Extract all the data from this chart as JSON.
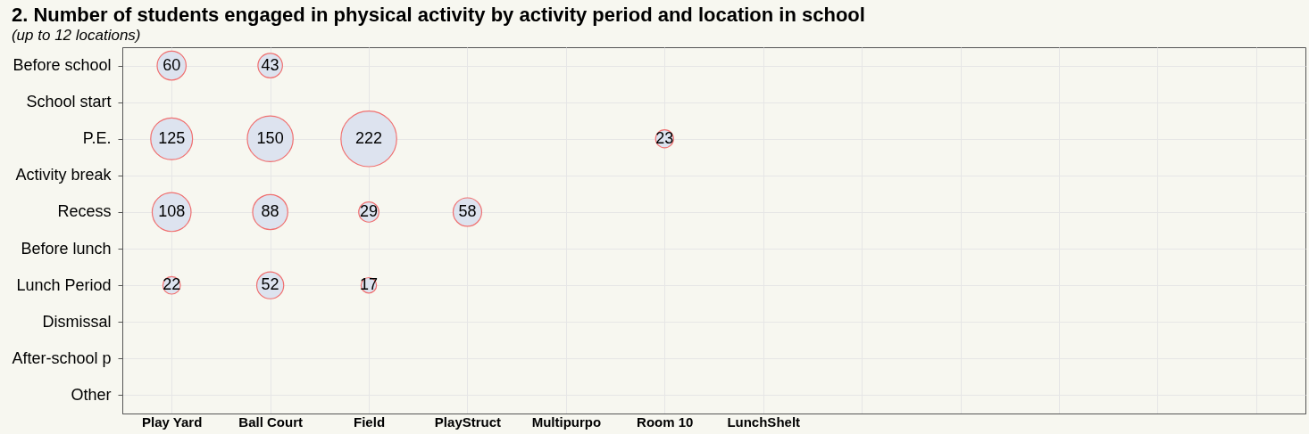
{
  "chart_data": {
    "type": "heatmap",
    "title": "2. Number of students engaged in physical activity by activity period and location in school",
    "subtitle": "(up to 12 locations)",
    "categories": [
      "Play Yard",
      "Ball Court",
      "Field",
      "PlayStruct",
      "Multipurpo",
      "Room 10",
      "LunchShelt",
      null,
      null,
      null,
      null,
      null
    ],
    "y_categories": [
      "Before school",
      "School start",
      "P.E.",
      "Activity break",
      "Recess",
      "Before lunch",
      "Lunch Period",
      "Dismissal",
      "After-school p",
      "Other"
    ],
    "cells": [
      [
        60,
        43,
        null,
        null,
        null,
        null,
        null,
        null,
        null,
        null,
        null,
        null
      ],
      [
        null,
        null,
        null,
        null,
        null,
        null,
        null,
        null,
        null,
        null,
        null,
        null
      ],
      [
        125,
        150,
        222,
        null,
        null,
        23,
        null,
        null,
        null,
        null,
        null,
        null
      ],
      [
        null,
        null,
        null,
        null,
        null,
        null,
        null,
        null,
        null,
        null,
        null,
        null
      ],
      [
        108,
        88,
        29,
        58,
        null,
        null,
        null,
        null,
        null,
        null,
        null,
        null
      ],
      [
        null,
        null,
        null,
        null,
        null,
        null,
        null,
        null,
        null,
        null,
        null,
        null
      ],
      [
        22,
        52,
        17,
        null,
        null,
        null,
        null,
        null,
        null,
        null,
        null,
        null
      ],
      [
        null,
        null,
        null,
        null,
        null,
        null,
        null,
        null,
        null,
        null,
        null,
        null
      ],
      [
        null,
        null,
        null,
        null,
        null,
        null,
        null,
        null,
        null,
        null,
        null,
        null
      ],
      [
        null,
        null,
        null,
        null,
        null,
        null,
        null,
        null,
        null,
        null,
        null,
        null
      ]
    ],
    "marker": "circle",
    "color": "#dde3ef",
    "data_labels": true,
    "grid": true
  }
}
